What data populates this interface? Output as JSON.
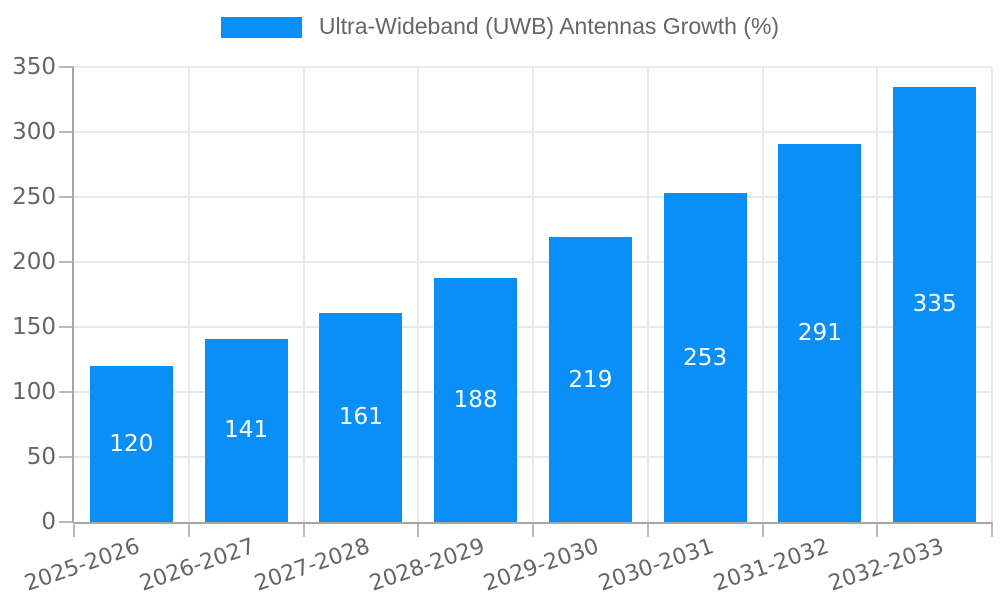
{
  "chart_data": {
    "type": "bar",
    "title": "Ultra-Wideband (UWB) Antennas Growth (%)",
    "legend": {
      "position": "top",
      "label": "Ultra-Wideband (UWB) Antennas Growth (%)"
    },
    "categories": [
      "2025-2026",
      "2026-2027",
      "2027-2028",
      "2028-2029",
      "2029-2030",
      "2030-2031",
      "2031-2032",
      "2032-2033"
    ],
    "series": [
      {
        "name": "Ultra-Wideband (UWB) Antennas Growth (%)",
        "values": [
          120,
          141,
          161,
          188,
          219,
          253,
          291,
          335
        ]
      }
    ],
    "xlabel": "",
    "ylabel": "",
    "ylim": [
      0,
      350
    ],
    "yticks": [
      0,
      50,
      100,
      150,
      200,
      250,
      300,
      350
    ],
    "grid": true,
    "x_label_rotation_deg": -19,
    "data_labels": "inside-center",
    "colors": {
      "bar": "#0a8ff8",
      "grid": "#e9e9e9",
      "axis": "#a6a6a6",
      "tick_mark": "#b9b9b9",
      "text": "#666666",
      "data_label": "#ffffff",
      "background": "#ffffff"
    }
  }
}
